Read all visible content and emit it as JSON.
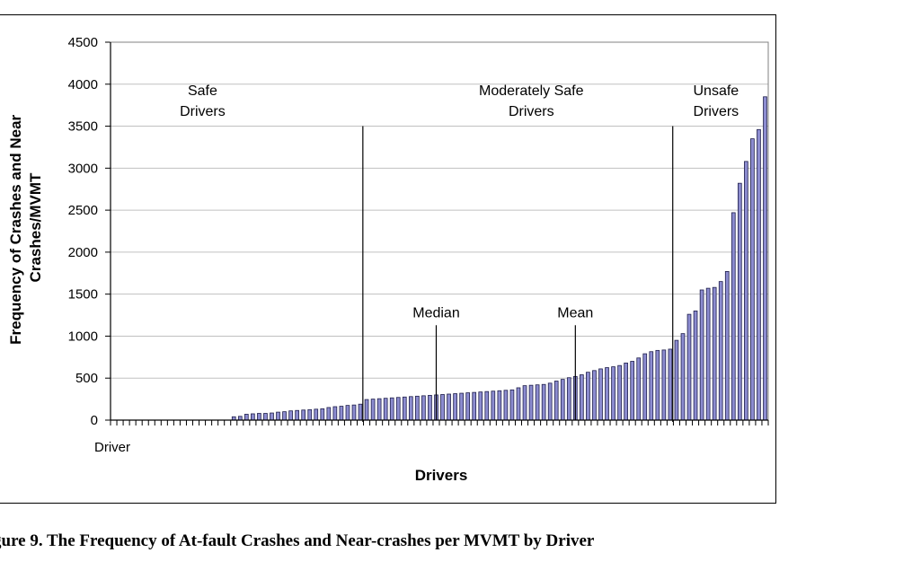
{
  "caption": "gure 9. The Frequency of At-fault Crashes and Near-crashes per MVMT by Driver",
  "colors": {
    "bar_fill": "#8C8CD0",
    "bar_stroke": "#1E1E4A",
    "grid": "#C0C0C0",
    "line": "#000000"
  },
  "chart_data": {
    "type": "bar",
    "title": "",
    "xlabel": "Drivers",
    "ylabel_lines": [
      "Frequency of Crashes and Near",
      "Crashes/MVMT"
    ],
    "ylim": [
      0,
      4500
    ],
    "yticks": [
      "0",
      "500",
      "1000",
      "1500",
      "2000",
      "2500",
      "3000",
      "3500",
      "4000",
      "4500"
    ],
    "category_label": "Driver",
    "grid": true,
    "values": [
      0,
      0,
      0,
      0,
      0,
      0,
      0,
      0,
      0,
      0,
      0,
      0,
      0,
      0,
      0,
      0,
      0,
      0,
      0,
      40,
      45,
      70,
      75,
      80,
      80,
      85,
      95,
      100,
      110,
      115,
      120,
      125,
      130,
      135,
      150,
      160,
      165,
      175,
      180,
      190,
      245,
      250,
      255,
      260,
      265,
      270,
      275,
      280,
      285,
      290,
      295,
      300,
      305,
      310,
      315,
      320,
      325,
      330,
      335,
      340,
      345,
      350,
      355,
      360,
      385,
      410,
      415,
      420,
      425,
      440,
      465,
      485,
      505,
      520,
      540,
      570,
      590,
      610,
      625,
      635,
      650,
      680,
      700,
      740,
      790,
      815,
      830,
      835,
      845,
      950,
      1030,
      1260,
      1300,
      1550,
      1570,
      1580,
      1650,
      1770,
      2470,
      2820,
      3080,
      3350,
      3460,
      3850
    ],
    "dividers": [
      {
        "label_lines": [
          "Safe",
          "Drivers"
        ],
        "divider_index": 40
      },
      {
        "label_lines": [
          "Moderately Safe",
          "Drivers"
        ],
        "divider_index": 89
      },
      {
        "label_lines": [
          "Unsafe",
          "Drivers"
        ]
      }
    ],
    "divider_height_value": 3500,
    "markers": [
      {
        "label": "Median",
        "index": 51,
        "value": 1130
      },
      {
        "label": "Mean",
        "index": 73,
        "value": 1130
      }
    ]
  }
}
